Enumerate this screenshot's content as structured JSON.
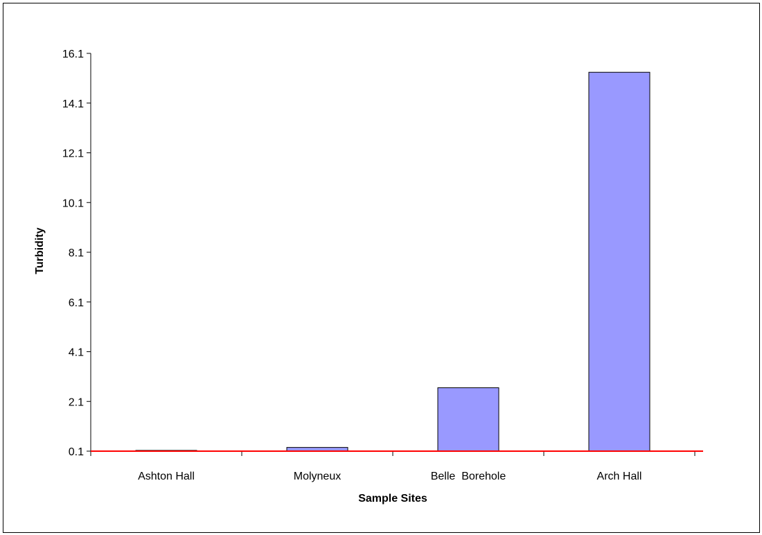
{
  "chart_data": {
    "type": "bar",
    "title": "",
    "xlabel": "Sample Sites",
    "ylabel": "Turbidity",
    "categories": [
      "Ashton Hall",
      "Molyneux",
      "Belle  Borehole",
      "Arch Hall"
    ],
    "series": [
      {
        "values": [
          0.13,
          0.25,
          2.65,
          15.34
        ]
      }
    ],
    "yticks": [
      "0.1",
      "2.1",
      "4.1",
      "6.1",
      "8.1",
      "10.1",
      "12.1",
      "14.1",
      "16.1"
    ],
    "ylim": [
      0.1,
      16.1
    ],
    "grid": false,
    "legend": "none",
    "colors": {
      "bar_fill": "#9999ff",
      "bar_stroke": "#000000",
      "baseline": "#ff0000",
      "axis": "#000000"
    }
  }
}
